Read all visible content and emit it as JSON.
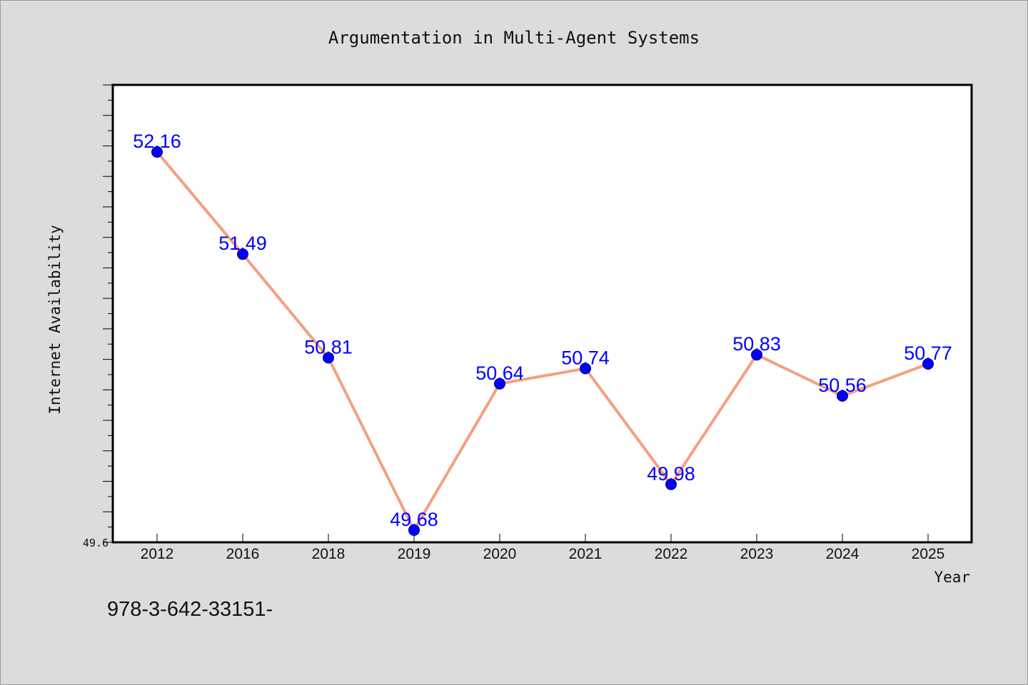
{
  "chart_data": {
    "type": "line",
    "title": "Argumentation in Multi-Agent Systems",
    "xlabel": "Year",
    "ylabel": "Internet Availability",
    "categories": [
      "2012",
      "2016",
      "2018",
      "2019",
      "2020",
      "2021",
      "2022",
      "2023",
      "2024",
      "2025"
    ],
    "series": [
      {
        "values": [
          52.16,
          51.49,
          50.81,
          49.68,
          50.64,
          50.74,
          49.98,
          50.83,
          50.56,
          50.77
        ],
        "labels": [
          "52.16",
          "51.49",
          "50.81",
          "49.68",
          "50.64",
          "50.74",
          "49.98",
          "50.83",
          "50.56",
          "50.77"
        ]
      }
    ],
    "ylim": [
      49.6,
      52.6
    ],
    "y_tick_labels": [
      "49.6"
    ],
    "grid": false,
    "line_color": "#f4a07f",
    "marker_color": "#0000ff",
    "label_color": "#0000ff"
  },
  "footer": {
    "note": "978-3-642-33151-"
  }
}
